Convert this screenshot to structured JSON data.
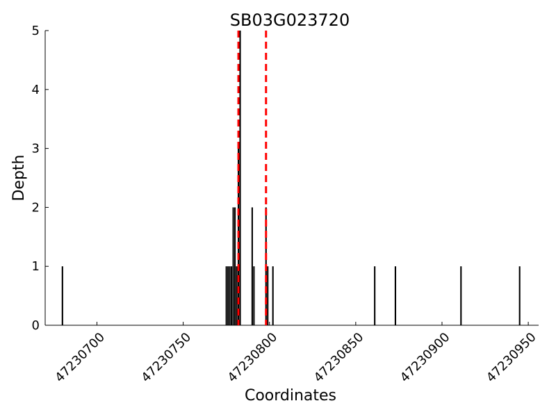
{
  "chart_data": {
    "type": "bar",
    "title": "SB03G023720",
    "xlabel": "Coordinates",
    "ylabel": "Depth",
    "xlim": [
      47230670,
      47230956
    ],
    "ylim": [
      0,
      5
    ],
    "x_ticks": [
      47230700,
      47230750,
      47230800,
      47230850,
      47230900,
      47230950
    ],
    "x_tick_labels": [
      "47230700",
      "47230750",
      "47230800",
      "47230850",
      "47230900",
      "47230950"
    ],
    "y_ticks": [
      0,
      1,
      2,
      3,
      4,
      5
    ],
    "y_tick_labels": [
      "0",
      "1",
      "2",
      "3",
      "4",
      "5"
    ],
    "bar_color": "#000000",
    "reference_line_color": "#ff0000",
    "reference_lines": [
      47230782,
      47230798
    ],
    "points": [
      {
        "x": 47230680,
        "y": 1
      },
      {
        "x": 47230775,
        "y": 1
      },
      {
        "x": 47230776,
        "y": 1
      },
      {
        "x": 47230777,
        "y": 1
      },
      {
        "x": 47230778,
        "y": 1
      },
      {
        "x": 47230779,
        "y": 2
      },
      {
        "x": 47230780,
        "y": 2
      },
      {
        "x": 47230781,
        "y": 1
      },
      {
        "x": 47230782,
        "y": 3
      },
      {
        "x": 47230783,
        "y": 5
      },
      {
        "x": 47230790,
        "y": 2
      },
      {
        "x": 47230791,
        "y": 1
      },
      {
        "x": 47230798,
        "y": 2
      },
      {
        "x": 47230799,
        "y": 1
      },
      {
        "x": 47230802,
        "y": 1
      },
      {
        "x": 47230861,
        "y": 1
      },
      {
        "x": 47230873,
        "y": 1
      },
      {
        "x": 47230911,
        "y": 1
      },
      {
        "x": 47230945,
        "y": 1
      }
    ]
  }
}
